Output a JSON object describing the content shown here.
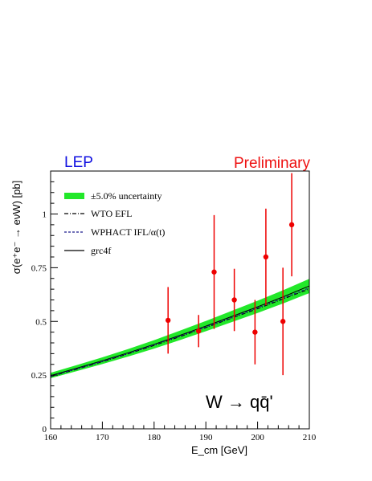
{
  "colors": {
    "band": "#22e82a",
    "points": "#ee0000",
    "lep": "#1010e0",
    "preliminary": "#ee1111",
    "wpahct": "#1a1a8c",
    "axis": "#000000"
  },
  "header": {
    "left": "LEP",
    "right": "Preliminary"
  },
  "process_label": "W → qq̄'",
  "chart_data": {
    "type": "line",
    "xlabel": "E_cm [GeV]",
    "ylabel": "σ(e⁺e⁻ → eνW) [pb]",
    "xlim": [
      160,
      210
    ],
    "ylim": [
      0,
      1.2
    ],
    "xticks": [
      160,
      170,
      180,
      190,
      200,
      210
    ],
    "yticks": [
      0,
      0.25,
      0.5,
      0.75,
      1
    ],
    "ytick_labels": [
      "0",
      "0.25",
      "0.5",
      "0.75",
      "1"
    ],
    "legend": [
      {
        "label": "±5.0% uncertainty",
        "style": "band"
      },
      {
        "label": "WTO EFL",
        "style": "dashdot"
      },
      {
        "label": "WPHACT IFL/α(t)",
        "style": "dashed"
      },
      {
        "label": "grc4f",
        "style": "solid"
      }
    ],
    "x": [
      160,
      165,
      170,
      175,
      180,
      185,
      190,
      195,
      200,
      205,
      210
    ],
    "series": [
      {
        "name": "grc4f",
        "values": [
          0.248,
          0.282,
          0.317,
          0.354,
          0.393,
          0.435,
          0.478,
          0.523,
          0.568,
          0.615,
          0.665
        ]
      },
      {
        "name": "WTO EFL",
        "values": [
          0.243,
          0.277,
          0.312,
          0.349,
          0.388,
          0.429,
          0.471,
          0.515,
          0.559,
          0.605,
          0.651
        ]
      },
      {
        "name": "WPHACT IFL/α(t)",
        "values": [
          0.245,
          0.279,
          0.314,
          0.351,
          0.391,
          0.432,
          0.474,
          0.518,
          0.563,
          0.609,
          0.656
        ]
      }
    ],
    "band_fraction": 0.05,
    "data_points": [
      {
        "x": 182.7,
        "y": 0.505,
        "err": 0.155
      },
      {
        "x": 188.6,
        "y": 0.455,
        "err": 0.075
      },
      {
        "x": 191.6,
        "y": 0.73,
        "err": 0.265
      },
      {
        "x": 195.5,
        "y": 0.6,
        "err": 0.145
      },
      {
        "x": 199.5,
        "y": 0.45,
        "err": 0.15
      },
      {
        "x": 201.6,
        "y": 0.8,
        "err": 0.225
      },
      {
        "x": 204.9,
        "y": 0.5,
        "err": 0.25
      },
      {
        "x": 206.6,
        "y": 0.95,
        "err": 0.24
      }
    ]
  }
}
